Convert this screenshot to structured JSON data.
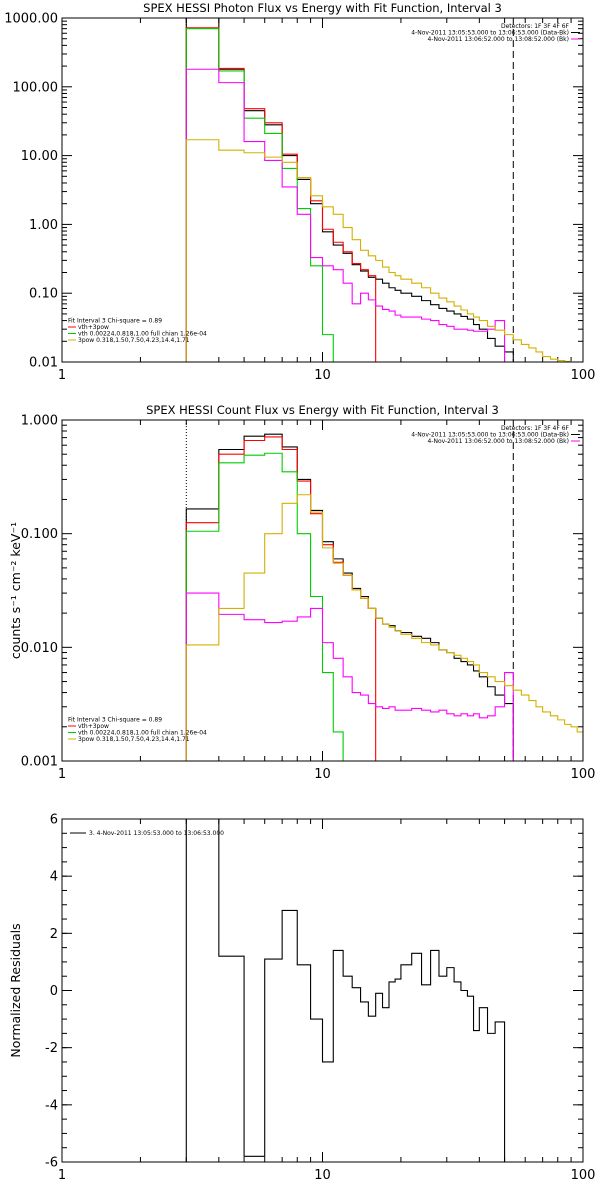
{
  "chart_data": [
    {
      "type": "line",
      "title": "SPEX HESSI Photon Flux vs Energy with Fit Function, Interval 3",
      "xlabel": "",
      "ylabel": "",
      "xscale": "log",
      "yscale": "log",
      "xlim": [
        1,
        100
      ],
      "ylim": [
        0.01,
        1000
      ],
      "x_ticks": [
        1,
        10,
        100
      ],
      "x_tick_labels": [
        "1",
        "10",
        "100"
      ],
      "y_ticks": [
        0.01,
        0.1,
        1,
        10,
        100,
        1000
      ],
      "y_tick_labels": [
        "0.01",
        "0.10",
        "1.00",
        "10.00",
        "100.00",
        "1000.00"
      ],
      "legend_tr": [
        {
          "text": "Detectors: 1F 3F 4F 6F",
          "color": "#000000"
        },
        {
          "text": "4-Nov-2011 13:05:53.000 to 13:06:53.000 (Data-Bk)",
          "color": "#000000"
        },
        {
          "text": "4-Nov-2011 13:06:52.000 to 13:08:52.000 (Bk)",
          "color": "#ff00ff"
        }
      ],
      "legend_bl": [
        {
          "text": "Fit Interval 3   Chi-square = 0.89",
          "color": "#000000"
        },
        {
          "text": "vth+3pow",
          "color": "#ff0000"
        },
        {
          "text": "vth 0.00224,0.818,1.00   full chian 1.26e-04",
          "color": "#00cc00"
        },
        {
          "text": "3pow 0.318,1.50,7.50,4.23,14.4,1.71",
          "color": "#d4b000"
        }
      ],
      "vlines": [
        {
          "x": 3,
          "style": "dotted"
        },
        {
          "x": 54,
          "style": "dashed"
        }
      ],
      "edges": [
        3,
        4,
        5,
        6,
        7,
        8,
        9,
        10,
        11,
        12,
        13,
        14,
        15,
        16,
        17,
        18,
        19,
        20,
        22,
        24,
        26,
        28,
        30,
        32,
        34,
        36,
        38,
        40,
        43,
        46,
        50,
        54,
        58,
        62,
        66,
        70,
        75,
        80,
        85,
        90
      ],
      "series": [
        {
          "color": "#000000",
          "values": [
            1000,
            180,
            45,
            28,
            10,
            4.5,
            2.0,
            0.78,
            0.5,
            0.38,
            0.26,
            0.21,
            0.17,
            0.16,
            0.14,
            0.12,
            0.11,
            0.1,
            0.09,
            0.078,
            0.068,
            0.06,
            0.055,
            0.05,
            0.046,
            0.042,
            0.035,
            0.03,
            0.022,
            0.017,
            0.014
          ]
        },
        {
          "color": "#ff0000",
          "values": [
            720,
            185,
            48,
            30,
            10.5,
            4.8,
            2.2,
            0.85,
            0.55,
            0.4,
            0.27,
            0.22,
            0.18
          ]
        },
        {
          "color": "#00cc00",
          "values": [
            700,
            170,
            35,
            21,
            6.5,
            1.7,
            0.25,
            0.025,
            0.01
          ]
        },
        {
          "color": "#ff00ff",
          "values": [
            180,
            115,
            16,
            8.5,
            3.5,
            1.4,
            0.33,
            0.25,
            0.22,
            0.14,
            0.07,
            0.1,
            0.08,
            0.065,
            0.058,
            0.055,
            0.048,
            0.045,
            0.045,
            0.042,
            0.04,
            0.035,
            0.033,
            0.03,
            0.03,
            0.029,
            0.028,
            0.028,
            0.03,
            0.04
          ]
        },
        {
          "color": "#d4b000",
          "values": [
            17,
            12,
            11,
            9.5,
            8,
            4.8,
            2.6,
            1.8,
            1.4,
            0.9,
            0.6,
            0.42,
            0.35,
            0.3,
            0.24,
            0.2,
            0.18,
            0.16,
            0.14,
            0.12,
            0.1,
            0.085,
            0.075,
            0.065,
            0.057,
            0.05,
            0.045,
            0.04,
            0.033,
            0.029,
            0.025,
            0.021,
            0.018,
            0.016,
            0.014,
            0.012,
            0.011,
            0.0105,
            0.0102
          ]
        }
      ]
    },
    {
      "type": "line",
      "title": "SPEX HESSI Count Flux vs Energy with Fit Function, Interval 3",
      "xlabel": "",
      "ylabel": "counts s⁻¹ cm⁻² keV⁻¹",
      "xscale": "log",
      "yscale": "log",
      "xlim": [
        1,
        100
      ],
      "ylim": [
        0.001,
        1
      ],
      "x_ticks": [
        1,
        10,
        100
      ],
      "x_tick_labels": [
        "1",
        "10",
        "100"
      ],
      "y_ticks": [
        0.001,
        0.01,
        0.1,
        1
      ],
      "y_tick_labels": [
        "0.001",
        "0.010",
        "0.100",
        "1.000"
      ],
      "legend_tr": [
        {
          "text": "Detectors: 1F 3F 4F 6F",
          "color": "#000000"
        },
        {
          "text": "4-Nov-2011 13:05:53.000 to 13:06:53.000 (Data-Bk)",
          "color": "#000000"
        },
        {
          "text": "4-Nov-2011 13:06:52.000 to 13:08:52.000 (Bk)",
          "color": "#ff00ff"
        }
      ],
      "legend_bl": [
        {
          "text": "Fit Interval 3   Chi-square = 0.89",
          "color": "#000000"
        },
        {
          "text": "vth+3pow",
          "color": "#ff0000"
        },
        {
          "text": "vth 0.00224,0.818,1.00   full chian 1.26e-04",
          "color": "#00cc00"
        },
        {
          "text": "3pow 0.318,1.50,7.50,4.23,14.4,1.71",
          "color": "#d4b000"
        }
      ],
      "vlines": [
        {
          "x": 3,
          "style": "dotted"
        },
        {
          "x": 54,
          "style": "dashed"
        }
      ],
      "edges": [
        3,
        4,
        5,
        6,
        7,
        8,
        9,
        10,
        11,
        12,
        13,
        14,
        15,
        16,
        17,
        18,
        19,
        20,
        22,
        24,
        26,
        28,
        30,
        32,
        34,
        36,
        38,
        40,
        43,
        46,
        50,
        54,
        58,
        62,
        66,
        70,
        75,
        80,
        85,
        90,
        95,
        100
      ],
      "series": [
        {
          "color": "#000000",
          "values": [
            0.165,
            0.55,
            0.72,
            0.75,
            0.58,
            0.3,
            0.16,
            0.085,
            0.06,
            0.045,
            0.033,
            0.028,
            0.022,
            0.018,
            0.016,
            0.0155,
            0.014,
            0.0135,
            0.0125,
            0.012,
            0.011,
            0.0095,
            0.009,
            0.008,
            0.0075,
            0.007,
            0.0062,
            0.0055,
            0.0045,
            0.0038,
            0.0032
          ]
        },
        {
          "color": "#ff0000",
          "values": [
            0.125,
            0.5,
            0.66,
            0.71,
            0.55,
            0.29,
            0.15,
            0.08,
            0.056,
            0.043,
            0.032,
            0.027,
            0.022
          ]
        },
        {
          "color": "#00cc00",
          "values": [
            0.105,
            0.42,
            0.49,
            0.51,
            0.35,
            0.1,
            0.028,
            0.006,
            0.0018
          ]
        },
        {
          "color": "#ff00ff",
          "values": [
            0.03,
            0.0195,
            0.0175,
            0.0165,
            0.017,
            0.0185,
            0.022,
            0.011,
            0.008,
            0.0055,
            0.004,
            0.0038,
            0.0032,
            0.003,
            0.0029,
            0.003,
            0.0028,
            0.0028,
            0.0029,
            0.0028,
            0.0027,
            0.0028,
            0.0026,
            0.0025,
            0.0026,
            0.0025,
            0.0026,
            0.0024,
            0.0025,
            0.003,
            0.006
          ]
        },
        {
          "color": "#d4b000",
          "values": [
            0.0105,
            0.022,
            0.045,
            0.1,
            0.185,
            0.22,
            0.155,
            0.075,
            0.055,
            0.043,
            0.032,
            0.027,
            0.022,
            0.018,
            0.016,
            0.015,
            0.014,
            0.013,
            0.012,
            0.011,
            0.0105,
            0.0095,
            0.009,
            0.0085,
            0.008,
            0.0075,
            0.007,
            0.006,
            0.0055,
            0.005,
            0.0046,
            0.0042,
            0.0038,
            0.0034,
            0.003,
            0.0027,
            0.0025,
            0.0023,
            0.0021,
            0.002,
            0.0018
          ]
        }
      ]
    },
    {
      "type": "line",
      "title": "",
      "xlabel": "",
      "ylabel": "Normalized Residuals",
      "xscale": "log",
      "yscale": "linear",
      "xlim": [
        1,
        100
      ],
      "ylim": [
        -6,
        6
      ],
      "x_ticks": [
        1,
        10,
        100
      ],
      "x_tick_labels": [
        "1",
        "10",
        "100"
      ],
      "y_ticks": [
        -6,
        -4,
        -2,
        0,
        2,
        4,
        6
      ],
      "y_tick_labels": [
        "-6",
        "-4",
        "-2",
        "0",
        "2",
        "4",
        "6"
      ],
      "legend_tl": [
        {
          "text": "3.  4-Nov-2011 13:05:53.000 to 13:06:53.000",
          "color": "#000000"
        }
      ],
      "edges": [
        3,
        4,
        5,
        6,
        7,
        8,
        9,
        10,
        11,
        12,
        13,
        14,
        15,
        16,
        17,
        18,
        19,
        20,
        22,
        24,
        26,
        28,
        30,
        32,
        34,
        36,
        38,
        40,
        43,
        46,
        50,
        54
      ],
      "series": [
        {
          "color": "#000000",
          "values": [
            6.0,
            1.2,
            -5.8,
            1.1,
            2.8,
            0.9,
            -1.0,
            -2.5,
            1.4,
            0.5,
            0.1,
            -0.4,
            -0.9,
            -0.1,
            -0.6,
            0.3,
            0.4,
            0.9,
            1.3,
            0.2,
            1.4,
            0.5,
            0.8,
            0.3,
            0.0,
            -0.2,
            -1.4,
            -0.6,
            -1.5,
            -1.1,
            -6.0
          ]
        }
      ]
    }
  ]
}
